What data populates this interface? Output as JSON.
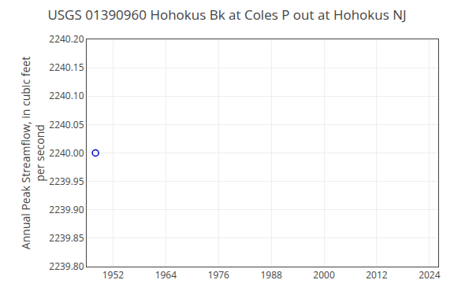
{
  "chart_data": {
    "type": "scatter",
    "title": "USGS 01390960 Hohokus Bk at Coles P out at Hohokus NJ",
    "ylabel": "Annual Peak Streamflow, in cubic feet\nper second",
    "x": [
      1948
    ],
    "values": [
      2240.0
    ],
    "color": "#0000cc",
    "marker": "circle-open",
    "xlim": [
      1946,
      2026
    ],
    "xticks": [
      1952,
      1964,
      1976,
      1988,
      2000,
      2012,
      2024
    ],
    "ylim": [
      2239.8,
      2240.2
    ],
    "yticks": [
      {
        "value": 2239.8,
        "label": "2239.80"
      },
      {
        "value": 2239.85,
        "label": "2239.85"
      },
      {
        "value": 2239.9,
        "label": "2239.90"
      },
      {
        "value": 2239.95,
        "label": "2239.95"
      },
      {
        "value": 2240.0,
        "label": "2240.00"
      },
      {
        "value": 2240.05,
        "label": "2240.05"
      },
      {
        "value": 2240.1,
        "label": "2240.10"
      },
      {
        "value": 2240.15,
        "label": "2240.15"
      },
      {
        "value": 2240.2,
        "label": "2240.20"
      }
    ],
    "grid": true
  }
}
